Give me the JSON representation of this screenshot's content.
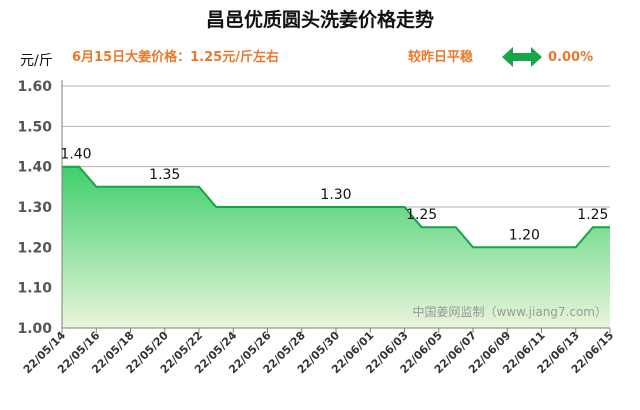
{
  "colors": {
    "accent_orange": "#e8792a",
    "line_green": "#16a44a",
    "fill_top": "#3fcf6c",
    "fill_bottom": "#e9f5da",
    "arrow_green": "#17a749"
  },
  "header": {
    "title": "昌邑优质圆头洗姜价格走势",
    "unit": "元/斤",
    "today_price": "6月15日大姜价格：1.25元/斤左右",
    "compare_label": "较昨日平稳",
    "change_icon": "double-arrow-icon",
    "change_value": "0.00%"
  },
  "watermark": "中国姜网监制（www.jiang7.com）",
  "chart_data": {
    "type": "area",
    "title": "昌邑优质圆头洗姜价格走势",
    "ylabel": "元/斤",
    "ylim": [
      1.0,
      1.6
    ],
    "yticks": [
      "1.00",
      "1.10",
      "1.20",
      "1.30",
      "1.40",
      "1.50",
      "1.60"
    ],
    "grid": "horizontal",
    "xticks": [
      "22/05/14",
      "22/05/16",
      "22/05/18",
      "22/05/20",
      "22/05/22",
      "22/05/24",
      "22/05/26",
      "22/05/28",
      "22/05/30",
      "22/06/01",
      "22/06/03",
      "22/06/05",
      "22/06/07",
      "22/06/09",
      "22/06/11",
      "22/06/13",
      "22/06/15"
    ],
    "x": [
      "22/05/14",
      "22/05/15",
      "22/05/16",
      "22/05/17",
      "22/05/18",
      "22/05/19",
      "22/05/20",
      "22/05/21",
      "22/05/22",
      "22/05/23",
      "22/05/24",
      "22/05/25",
      "22/05/26",
      "22/05/27",
      "22/05/28",
      "22/05/29",
      "22/05/30",
      "22/05/31",
      "22/06/01",
      "22/06/02",
      "22/06/03",
      "22/06/04",
      "22/06/05",
      "22/06/06",
      "22/06/07",
      "22/06/08",
      "22/06/09",
      "22/06/10",
      "22/06/11",
      "22/06/12",
      "22/06/13",
      "22/06/14",
      "22/06/15"
    ],
    "values": [
      1.4,
      1.4,
      1.35,
      1.35,
      1.35,
      1.35,
      1.35,
      1.35,
      1.35,
      1.3,
      1.3,
      1.3,
      1.3,
      1.3,
      1.3,
      1.3,
      1.3,
      1.3,
      1.3,
      1.3,
      1.3,
      1.25,
      1.25,
      1.25,
      1.2,
      1.2,
      1.2,
      1.2,
      1.2,
      1.2,
      1.2,
      1.25,
      1.25
    ],
    "data_labels": [
      {
        "x": "22/05/14",
        "text": "1.40"
      },
      {
        "x": "22/05/20",
        "text": "1.35"
      },
      {
        "x": "22/05/30",
        "text": "1.30"
      },
      {
        "x": "22/06/04",
        "text": "1.25"
      },
      {
        "x": "22/06/10",
        "text": "1.20"
      },
      {
        "x": "22/06/14",
        "text": "1.25"
      }
    ]
  }
}
